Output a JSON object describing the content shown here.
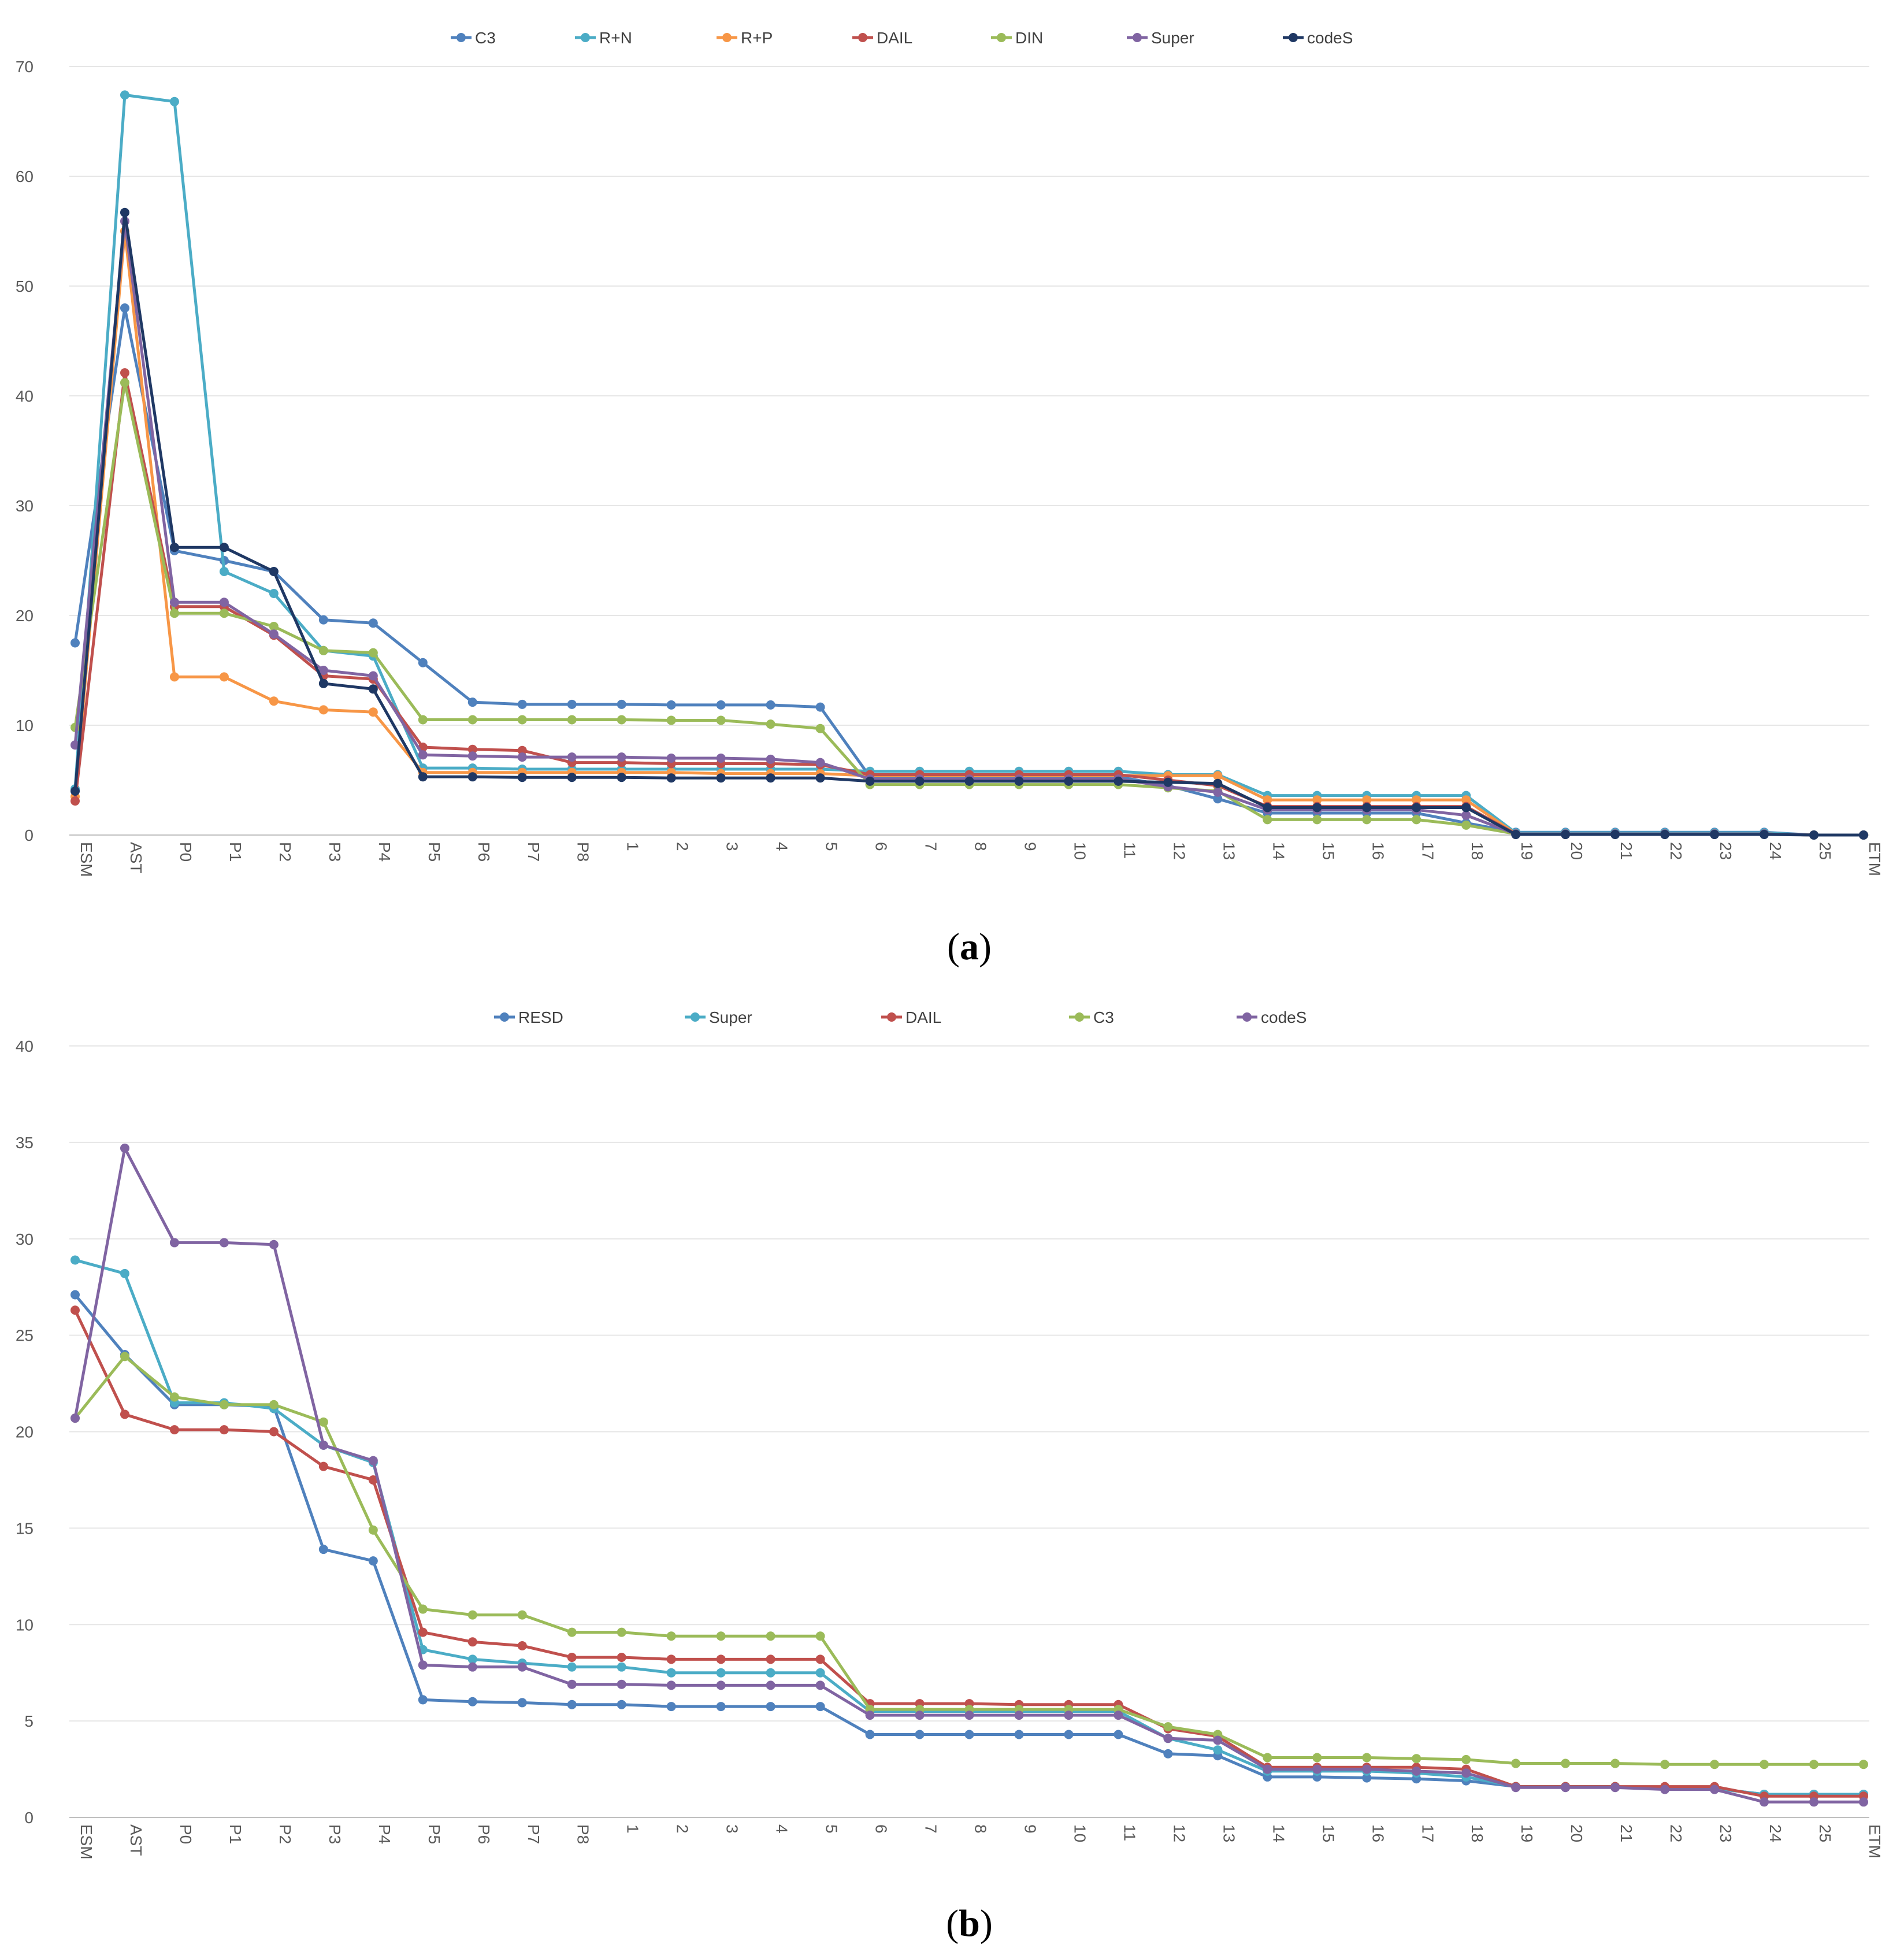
{
  "categories": [
    "ESM",
    "AST",
    "P0",
    "P1",
    "P2",
    "P3",
    "P4",
    "P5",
    "P6",
    "P7",
    "P8",
    "1",
    "2",
    "3",
    "4",
    "5",
    "6",
    "7",
    "8",
    "9",
    "10",
    "11",
    "12",
    "13",
    "14",
    "15",
    "16",
    "17",
    "18",
    "19",
    "20",
    "21",
    "22",
    "23",
    "24",
    "25",
    "ETM"
  ],
  "chart_data": [
    {
      "type": "line",
      "caption": {
        "open": "(",
        "letter": "a",
        "close": ")"
      },
      "ylim": [
        0,
        70
      ],
      "yticks": [
        0,
        10,
        20,
        30,
        40,
        50,
        60,
        70
      ],
      "xlabel": "",
      "ylabel": "",
      "legend_position": "top-center",
      "series": [
        {
          "name": "C3",
          "color": "#4F81BD",
          "values": [
            17.5,
            48,
            25.9,
            25,
            24,
            19.6,
            19.3,
            15.7,
            12.1,
            11.9,
            11.9,
            11.9,
            11.85,
            11.85,
            11.85,
            11.65,
            5.3,
            5.3,
            5.3,
            5.3,
            5.3,
            5.3,
            4.5,
            3.3,
            2,
            2,
            2,
            2,
            1.1,
            0.25,
            0.25,
            0.25,
            0.25,
            0.25,
            0.25,
            0,
            0
          ]
        },
        {
          "name": "R+N",
          "color": "#4BACC6",
          "values": [
            4.2,
            67.4,
            66.8,
            24,
            22,
            16.8,
            16.3,
            6.1,
            6.1,
            6,
            6,
            6,
            6,
            6,
            6,
            6,
            5.8,
            5.8,
            5.8,
            5.8,
            5.8,
            5.8,
            5.5,
            5.5,
            3.6,
            3.6,
            3.6,
            3.6,
            3.6,
            0.2,
            0.2,
            0.2,
            0.2,
            0.2,
            0.2,
            0,
            0
          ]
        },
        {
          "name": "R+P",
          "color": "#F79646",
          "values": [
            3.5,
            55,
            14.4,
            14.4,
            12.2,
            11.4,
            11.2,
            5.7,
            5.7,
            5.7,
            5.7,
            5.7,
            5.7,
            5.6,
            5.6,
            5.6,
            5.4,
            5.4,
            5.4,
            5.4,
            5.4,
            5.4,
            5.4,
            5.4,
            3.2,
            3.2,
            3.2,
            3.2,
            3.2,
            0.1,
            0.1,
            0.1,
            0.1,
            0.1,
            0.1,
            0,
            0
          ]
        },
        {
          "name": "DAIL",
          "color": "#C0504D",
          "values": [
            3.1,
            42.1,
            20.8,
            20.8,
            18.2,
            14.5,
            14.2,
            8,
            7.8,
            7.7,
            6.6,
            6.6,
            6.5,
            6.5,
            6.5,
            6.4,
            5.5,
            5.5,
            5.5,
            5.5,
            5.5,
            5.5,
            5,
            4.5,
            2.6,
            2.6,
            2.6,
            2.6,
            2.6,
            0.1,
            0.1,
            0.1,
            0.1,
            0.1,
            0.1,
            0,
            0
          ]
        },
        {
          "name": "DIN",
          "color": "#9BBB59",
          "values": [
            9.8,
            41.2,
            20.2,
            20.2,
            19,
            16.8,
            16.6,
            10.5,
            10.5,
            10.5,
            10.5,
            10.5,
            10.45,
            10.45,
            10.1,
            9.7,
            4.6,
            4.6,
            4.6,
            4.6,
            4.6,
            4.6,
            4.3,
            4,
            1.4,
            1.4,
            1.4,
            1.4,
            0.9,
            0.1,
            0.1,
            0.1,
            0.1,
            0.1,
            0.1,
            0,
            0
          ]
        },
        {
          "name": "Super",
          "color": "#8064A2",
          "values": [
            8.2,
            55.9,
            21.2,
            21.2,
            18.3,
            15,
            14.5,
            7.3,
            7.2,
            7.1,
            7.1,
            7.1,
            7,
            7,
            6.9,
            6.6,
            5.1,
            5.1,
            5.1,
            5.1,
            5.1,
            5.1,
            4.4,
            3.9,
            2.3,
            2.3,
            2.3,
            2.3,
            1.8,
            0.1,
            0.1,
            0.1,
            0.1,
            0.1,
            0.1,
            0,
            0
          ]
        },
        {
          "name": "codeS",
          "color": "#1F3864",
          "values": [
            4,
            56.7,
            26.2,
            26.2,
            24,
            13.8,
            13.3,
            5.3,
            5.3,
            5.25,
            5.25,
            5.25,
            5.2,
            5.2,
            5.2,
            5.2,
            4.9,
            4.9,
            4.9,
            4.9,
            4.9,
            4.9,
            4.8,
            4.7,
            2.5,
            2.5,
            2.5,
            2.5,
            2.5,
            0.05,
            0.05,
            0.05,
            0.05,
            0.05,
            0.05,
            0,
            0
          ]
        }
      ]
    },
    {
      "type": "line",
      "caption": {
        "open": "(",
        "letter": "b",
        "close": ")"
      },
      "ylim": [
        0,
        40
      ],
      "yticks": [
        0,
        5,
        10,
        15,
        20,
        25,
        30,
        35,
        40
      ],
      "xlabel": "",
      "ylabel": "",
      "legend_position": "top-center",
      "series": [
        {
          "name": "RESD",
          "color": "#4F81BD",
          "values": [
            27.1,
            24,
            21.4,
            21.4,
            21.3,
            13.9,
            13.3,
            6.1,
            6,
            5.95,
            5.85,
            5.85,
            5.75,
            5.75,
            5.75,
            5.75,
            4.3,
            4.3,
            4.3,
            4.3,
            4.3,
            4.3,
            3.3,
            3.2,
            2.1,
            2.1,
            2.05,
            2,
            1.9,
            1.6,
            1.6,
            1.6,
            1.5,
            1.5,
            1.2,
            1.2,
            1.2
          ]
        },
        {
          "name": "Super",
          "color": "#4BACC6",
          "values": [
            28.9,
            28.2,
            21.5,
            21.5,
            21.2,
            19.3,
            18.4,
            8.7,
            8.2,
            8,
            7.8,
            7.8,
            7.5,
            7.5,
            7.5,
            7.5,
            5.5,
            5.5,
            5.5,
            5.5,
            5.5,
            5.5,
            4.1,
            3.5,
            2.4,
            2.4,
            2.4,
            2.3,
            2.1,
            1.6,
            1.6,
            1.6,
            1.5,
            1.5,
            1.2,
            1.2,
            1.2
          ]
        },
        {
          "name": "DAIL",
          "color": "#C0504D",
          "values": [
            26.3,
            20.9,
            20.1,
            20.1,
            20,
            18.2,
            17.5,
            9.6,
            9.1,
            8.9,
            8.3,
            8.3,
            8.2,
            8.2,
            8.2,
            8.2,
            5.9,
            5.9,
            5.9,
            5.85,
            5.85,
            5.85,
            4.6,
            4.2,
            2.6,
            2.6,
            2.6,
            2.6,
            2.5,
            1.6,
            1.6,
            1.6,
            1.6,
            1.6,
            1.1,
            1.1,
            1.1
          ]
        },
        {
          "name": "C3",
          "color": "#9BBB59",
          "values": [
            20.7,
            23.9,
            21.8,
            21.4,
            21.4,
            20.5,
            14.9,
            10.8,
            10.5,
            10.5,
            9.6,
            9.6,
            9.4,
            9.4,
            9.4,
            9.4,
            5.6,
            5.6,
            5.6,
            5.6,
            5.6,
            5.6,
            4.7,
            4.3,
            3.1,
            3.1,
            3.1,
            3.05,
            3,
            2.8,
            2.8,
            2.8,
            2.75,
            2.75,
            2.75,
            2.75,
            2.75
          ]
        },
        {
          "name": "codeS",
          "color": "#8064A2",
          "values": [
            20.7,
            34.7,
            29.8,
            29.8,
            29.7,
            19.3,
            18.5,
            7.9,
            7.8,
            7.8,
            6.9,
            6.9,
            6.85,
            6.85,
            6.85,
            6.85,
            5.3,
            5.3,
            5.3,
            5.3,
            5.3,
            5.3,
            4.1,
            4,
            2.5,
            2.5,
            2.5,
            2.4,
            2.3,
            1.55,
            1.55,
            1.55,
            1.45,
            1.45,
            0.8,
            0.8,
            0.8
          ]
        }
      ]
    }
  ]
}
